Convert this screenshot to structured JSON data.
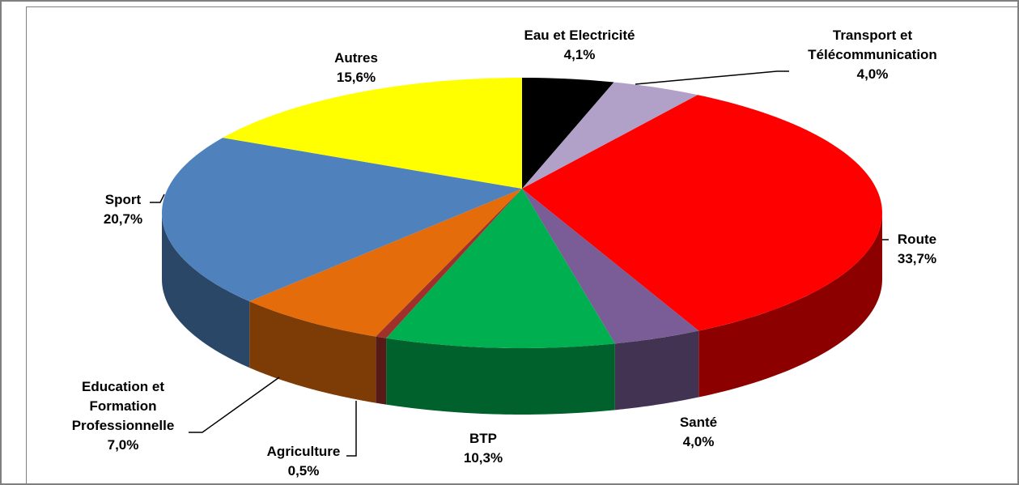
{
  "chart_data": {
    "type": "pie",
    "categories": [
      "Eau et Electricité",
      "Transport et Télécommunication",
      "Route",
      "Santé",
      "BTP",
      "Agriculture",
      "Education et Formation Professionnelle",
      "Sport",
      "Autres"
    ],
    "values": [
      4.1,
      4.0,
      33.7,
      4.0,
      10.3,
      0.5,
      7.0,
      20.7,
      15.6
    ],
    "value_labels": [
      "4,1%",
      "4,0%",
      "33,7%",
      "4,0%",
      "10,3%",
      "0,5%",
      "7,0%",
      "20,7%",
      "15,6%"
    ],
    "colors": [
      "#000000",
      "#b1a0c7",
      "#ff0000",
      "#7a5c96",
      "#00b050",
      "#a0302a",
      "#e46c0a",
      "#4f81bd",
      "#ffff00"
    ]
  }
}
